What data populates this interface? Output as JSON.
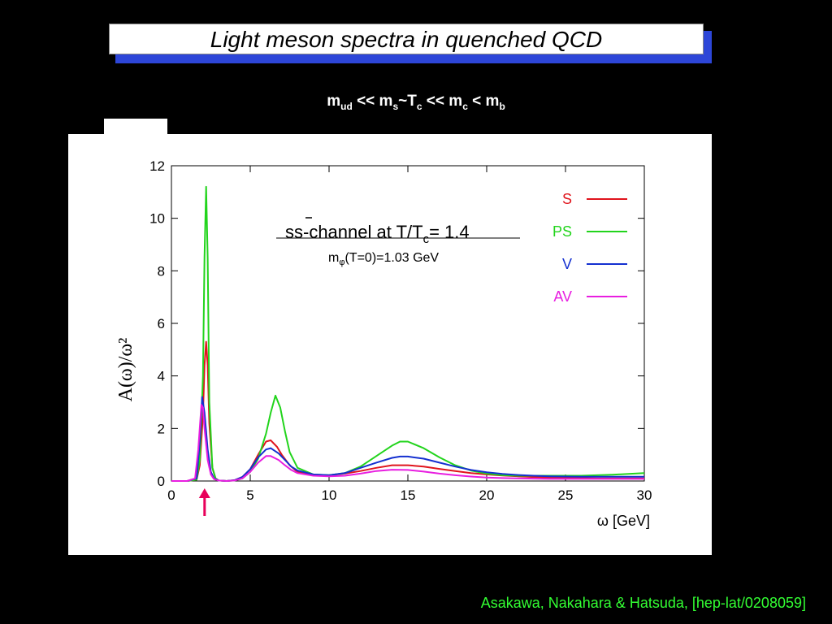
{
  "slide": {
    "title": "Light meson spectra in quenched  QCD",
    "subtitle_parts": [
      "m",
      "ud",
      " << m",
      "s",
      "~T",
      "c",
      " << m",
      "c",
      " < m",
      "b"
    ],
    "citation": "Asakawa, Nakahara  & Hatsuda,  [hep-lat/0208059]"
  },
  "chart_data": {
    "type": "line",
    "annotation": {
      "channel_pre": "ss-channel at T/T",
      "channel_sub": "c",
      "channel_post": "= 1.4",
      "mass_pre": "m",
      "mass_sub": "φ",
      "mass_post": "(T=0)=1.03 GeV"
    },
    "xlabel": "ω [GeV]",
    "ylabel": "A(ω)/ω²",
    "xlim": [
      0,
      30
    ],
    "ylim": [
      0,
      12
    ],
    "xticks": [
      0,
      5,
      10,
      15,
      20,
      25,
      30
    ],
    "yticks": [
      0,
      2,
      4,
      6,
      8,
      10,
      12
    ],
    "grid": false,
    "legend_position": "top-right",
    "arrow_at_x": 2.0,
    "colors": {
      "arrow": "#e8005a"
    },
    "series": [
      {
        "name": "S",
        "color": "#e0141c",
        "x": [
          0,
          1,
          1.6,
          1.8,
          2.0,
          2.1,
          2.2,
          2.3,
          2.4,
          2.6,
          2.8,
          3.0,
          3.5,
          4.0,
          4.5,
          5.0,
          5.5,
          6.0,
          6.3,
          6.7,
          7.0,
          7.5,
          8.0,
          9.0,
          10,
          11,
          12,
          13,
          14,
          15,
          16,
          17,
          18,
          19,
          20,
          21,
          22,
          23,
          24,
          25,
          26,
          27,
          28,
          29,
          30
        ],
        "y": [
          0,
          0,
          0.05,
          0.6,
          2.5,
          4.4,
          5.3,
          4.4,
          2.2,
          0.5,
          0.1,
          0.02,
          0,
          0.03,
          0.15,
          0.45,
          1.0,
          1.5,
          1.55,
          1.3,
          1.0,
          0.6,
          0.35,
          0.22,
          0.22,
          0.28,
          0.38,
          0.5,
          0.6,
          0.6,
          0.55,
          0.46,
          0.38,
          0.3,
          0.25,
          0.21,
          0.18,
          0.15,
          0.13,
          0.12,
          0.11,
          0.1,
          0.1,
          0.1,
          0.1
        ]
      },
      {
        "name": "PS",
        "color": "#22d41c",
        "x": [
          0,
          1,
          1.6,
          1.8,
          2.0,
          2.1,
          2.2,
          2.3,
          2.4,
          2.6,
          2.8,
          3.0,
          3.5,
          4.0,
          4.5,
          5.0,
          5.5,
          6.0,
          6.3,
          6.6,
          6.9,
          7.2,
          7.5,
          8.0,
          9.0,
          10,
          11,
          12,
          13,
          14,
          14.5,
          15,
          16,
          17,
          18,
          19,
          20,
          21,
          22,
          23,
          24,
          25,
          26,
          27,
          28,
          29,
          30
        ],
        "y": [
          0,
          0,
          0.05,
          0.8,
          4.0,
          8.5,
          11.2,
          8.5,
          3.0,
          0.5,
          0.1,
          0.02,
          0,
          0.02,
          0.1,
          0.35,
          0.85,
          1.8,
          2.6,
          3.25,
          2.8,
          1.9,
          1.1,
          0.5,
          0.25,
          0.22,
          0.3,
          0.55,
          0.95,
          1.35,
          1.5,
          1.5,
          1.25,
          0.9,
          0.6,
          0.4,
          0.28,
          0.22,
          0.2,
          0.2,
          0.2,
          0.2,
          0.2,
          0.22,
          0.24,
          0.27,
          0.3
        ]
      },
      {
        "name": "V",
        "color": "#1430d0",
        "x": [
          0,
          1,
          1.6,
          1.8,
          1.95,
          2.1,
          2.3,
          2.5,
          2.7,
          3.0,
          3.5,
          4.0,
          4.5,
          5.0,
          5.5,
          6.0,
          6.3,
          6.8,
          7.2,
          7.6,
          8.0,
          9.0,
          10,
          11,
          12,
          13,
          14,
          14.5,
          15,
          16,
          17,
          18,
          19,
          20,
          21,
          22,
          23,
          24,
          25,
          26,
          27,
          28,
          29,
          30
        ],
        "y": [
          0,
          0,
          0.1,
          1.5,
          3.2,
          2.6,
          1.2,
          0.35,
          0.1,
          0.02,
          0,
          0.03,
          0.15,
          0.45,
          0.9,
          1.2,
          1.25,
          1.05,
          0.8,
          0.55,
          0.4,
          0.25,
          0.22,
          0.3,
          0.5,
          0.7,
          0.88,
          0.93,
          0.93,
          0.85,
          0.7,
          0.55,
          0.42,
          0.33,
          0.27,
          0.23,
          0.2,
          0.18,
          0.17,
          0.16,
          0.16,
          0.16,
          0.16,
          0.16
        ]
      },
      {
        "name": "AV",
        "color": "#e81ee0",
        "x": [
          0,
          1,
          1.5,
          1.7,
          1.9,
          2.0,
          2.1,
          2.3,
          2.5,
          2.7,
          3.0,
          3.5,
          4.0,
          4.5,
          5.0,
          5.5,
          6.0,
          6.3,
          6.8,
          7.2,
          7.6,
          8.0,
          9.0,
          10,
          11,
          12,
          13,
          14,
          15,
          16,
          17,
          18,
          19,
          20,
          21,
          22,
          23,
          24,
          25,
          26,
          27,
          28,
          29,
          30
        ],
        "y": [
          0,
          0,
          0.1,
          1.2,
          2.9,
          2.8,
          2.0,
          0.8,
          0.25,
          0.07,
          0.02,
          0,
          0.02,
          0.1,
          0.35,
          0.7,
          0.95,
          0.95,
          0.8,
          0.6,
          0.42,
          0.3,
          0.2,
          0.18,
          0.2,
          0.28,
          0.38,
          0.43,
          0.42,
          0.36,
          0.28,
          0.22,
          0.17,
          0.13,
          0.11,
          0.1,
          0.09,
          0.08,
          0.08,
          0.08,
          0.08,
          0.08,
          0.08,
          0.08
        ]
      }
    ]
  }
}
